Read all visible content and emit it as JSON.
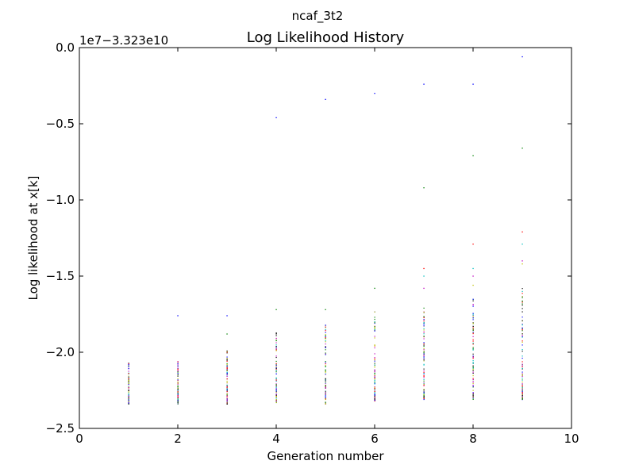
{
  "figure": {
    "suptitle": "ncaf_3t2"
  },
  "chart_data": {
    "type": "scatter",
    "title": "Log Likelihood History",
    "xlabel": "Generation number",
    "ylabel": "Log likelihood at x[k]",
    "axis_offset_text": "1e7−3.323e10",
    "xlim": [
      0,
      10
    ],
    "ylim": [
      -2.5,
      0.0
    ],
    "x_ticks": [
      "0",
      "2",
      "4",
      "6",
      "8",
      "10"
    ],
    "y_ticks": [
      "−2.5",
      "−2.0",
      "−1.5",
      "−1.0",
      "−0.5",
      "0.0"
    ],
    "grid": false,
    "series": [
      {
        "generation": 1,
        "min": -2.34,
        "max": -2.07,
        "outliers": []
      },
      {
        "generation": 2,
        "min": -2.34,
        "max": -2.06,
        "outliers": [
          -1.76
        ]
      },
      {
        "generation": 3,
        "min": -2.34,
        "max": -1.99,
        "outliers": [
          -1.76,
          -1.88
        ]
      },
      {
        "generation": 4,
        "min": -2.33,
        "max": -1.86,
        "outliers": [
          -0.46,
          -1.72
        ]
      },
      {
        "generation": 5,
        "min": -2.34,
        "max": -1.82,
        "outliers": [
          -0.34,
          -1.72
        ]
      },
      {
        "generation": 6,
        "min": -2.32,
        "max": -1.72,
        "outliers": [
          -0.3,
          -1.58
        ]
      },
      {
        "generation": 7,
        "min": -2.31,
        "max": -1.68,
        "outliers": [
          -0.24,
          -0.92,
          -1.45,
          -1.5,
          -1.58
        ]
      },
      {
        "generation": 8,
        "min": -2.31,
        "max": -1.65,
        "outliers": [
          -0.24,
          -0.71,
          -1.29,
          -1.45,
          -1.5,
          -1.56
        ]
      },
      {
        "generation": 9,
        "min": -2.31,
        "max": -1.55,
        "outliers": [
          -0.06,
          -0.66,
          -1.21,
          -1.29,
          -1.4,
          -1.42
        ]
      }
    ]
  }
}
